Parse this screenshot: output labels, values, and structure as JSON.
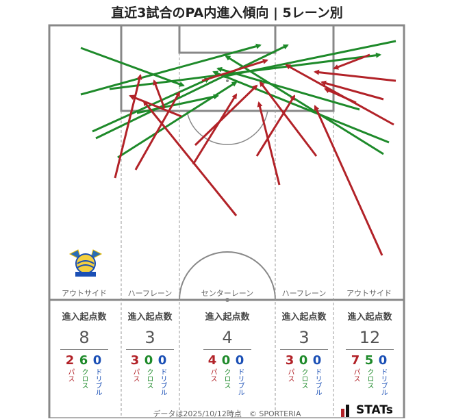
{
  "title": "直近3試合のPA内進入傾向 | 5レーン別",
  "lanes": [
    {
      "label": "アウトサイド",
      "stat_head": "進入起点数",
      "total": "8",
      "pass": "2",
      "cross": "6",
      "dribble": "0"
    },
    {
      "label": "ハーフレーン",
      "stat_head": "進入起点数",
      "total": "3",
      "pass": "3",
      "cross": "0",
      "dribble": "0"
    },
    {
      "label": "センターレーン",
      "stat_head": "進入起点数",
      "total": "4",
      "pass": "4",
      "cross": "0",
      "dribble": "0"
    },
    {
      "label": "ハーフレーン",
      "stat_head": "進入起点数",
      "total": "3",
      "pass": "3",
      "cross": "0",
      "dribble": "0"
    },
    {
      "label": "アウトサイド",
      "stat_head": "進入起点数",
      "total": "12",
      "pass": "7",
      "cross": "5",
      "dribble": "0"
    }
  ],
  "type_labels": {
    "pass": "パス",
    "cross": "クロス",
    "dribble": "ドリブル"
  },
  "colors": {
    "pass": "#b22228",
    "cross": "#1e8a2a",
    "dribble": "#1a4fb5",
    "pitch_line": "#888888"
  },
  "footer": "データは2025/10/12時点　© SPORTERIA",
  "brand": "STATs",
  "emblem": "team-emblem"
}
